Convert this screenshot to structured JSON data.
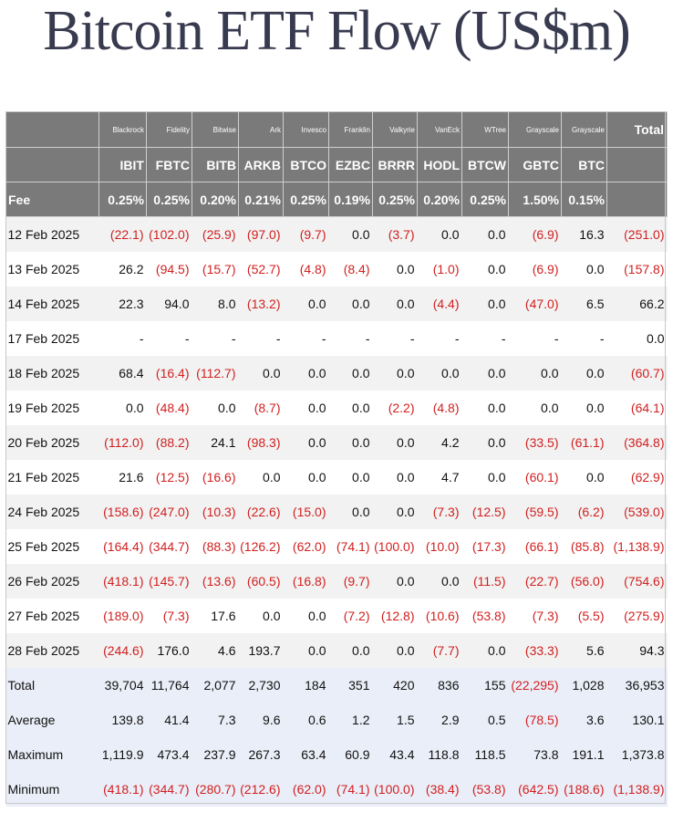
{
  "title": "Bitcoin ETF Flow (US$m)",
  "colors": {
    "header_bg": "#7a7a7a",
    "negative": "#d11f1f",
    "stripe": "#f2f2f2",
    "stats_bg": "#eaeef8",
    "title": "#383a4f"
  },
  "chart_data": {
    "type": "table",
    "title": "Bitcoin ETF Flow (US$m)",
    "issuers": [
      "Blackrock",
      "Fidelity",
      "Bitwise",
      "Ark",
      "Invesco",
      "Franklin",
      "Valkyrie",
      "VanEck",
      "WTree",
      "Grayscale",
      "Grayscale"
    ],
    "total_header": "Total",
    "tickers": [
      "IBIT",
      "FBTC",
      "BITB",
      "ARKB",
      "BTCO",
      "EZBC",
      "BRRR",
      "HODL",
      "BTCW",
      "GBTC",
      "BTC"
    ],
    "fee_label": "Fee",
    "fees": [
      "0.25%",
      "0.25%",
      "0.20%",
      "0.21%",
      "0.25%",
      "0.19%",
      "0.25%",
      "0.20%",
      "0.25%",
      "1.50%",
      "0.15%"
    ],
    "rows": [
      {
        "date": "12 Feb 2025",
        "cells": [
          "(22.1)",
          "(102.0)",
          "(25.9)",
          "(97.0)",
          "(9.7)",
          "0.0",
          "(3.7)",
          "0.0",
          "0.0",
          "(6.9)",
          "16.3",
          "(251.0)"
        ]
      },
      {
        "date": "13 Feb 2025",
        "cells": [
          "26.2",
          "(94.5)",
          "(15.7)",
          "(52.7)",
          "(4.8)",
          "(8.4)",
          "0.0",
          "(1.0)",
          "0.0",
          "(6.9)",
          "0.0",
          "(157.8)"
        ]
      },
      {
        "date": "14 Feb 2025",
        "cells": [
          "22.3",
          "94.0",
          "8.0",
          "(13.2)",
          "0.0",
          "0.0",
          "0.0",
          "(4.4)",
          "0.0",
          "(47.0)",
          "6.5",
          "66.2"
        ]
      },
      {
        "date": "17 Feb 2025",
        "cells": [
          "-",
          "-",
          "-",
          "-",
          "-",
          "-",
          "-",
          "-",
          "-",
          "-",
          "-",
          "0.0"
        ]
      },
      {
        "date": "18 Feb 2025",
        "cells": [
          "68.4",
          "(16.4)",
          "(112.7)",
          "0.0",
          "0.0",
          "0.0",
          "0.0",
          "0.0",
          "0.0",
          "0.0",
          "0.0",
          "(60.7)"
        ]
      },
      {
        "date": "19 Feb 2025",
        "cells": [
          "0.0",
          "(48.4)",
          "0.0",
          "(8.7)",
          "0.0",
          "0.0",
          "(2.2)",
          "(4.8)",
          "0.0",
          "0.0",
          "0.0",
          "(64.1)"
        ]
      },
      {
        "date": "20 Feb 2025",
        "cells": [
          "(112.0)",
          "(88.2)",
          "24.1",
          "(98.3)",
          "0.0",
          "0.0",
          "0.0",
          "4.2",
          "0.0",
          "(33.5)",
          "(61.1)",
          "(364.8)"
        ]
      },
      {
        "date": "21 Feb 2025",
        "cells": [
          "21.6",
          "(12.5)",
          "(16.6)",
          "0.0",
          "0.0",
          "0.0",
          "0.0",
          "4.7",
          "0.0",
          "(60.1)",
          "0.0",
          "(62.9)"
        ]
      },
      {
        "date": "24 Feb 2025",
        "cells": [
          "(158.6)",
          "(247.0)",
          "(10.3)",
          "(22.6)",
          "(15.0)",
          "0.0",
          "0.0",
          "(7.3)",
          "(12.5)",
          "(59.5)",
          "(6.2)",
          "(539.0)"
        ]
      },
      {
        "date": "25 Feb 2025",
        "cells": [
          "(164.4)",
          "(344.7)",
          "(88.3)",
          "(126.2)",
          "(62.0)",
          "(74.1)",
          "(100.0)",
          "(10.0)",
          "(17.3)",
          "(66.1)",
          "(85.8)",
          "(1,138.9)"
        ]
      },
      {
        "date": "26 Feb 2025",
        "cells": [
          "(418.1)",
          "(145.7)",
          "(13.6)",
          "(60.5)",
          "(16.8)",
          "(9.7)",
          "0.0",
          "0.0",
          "(11.5)",
          "(22.7)",
          "(56.0)",
          "(754.6)"
        ]
      },
      {
        "date": "27 Feb 2025",
        "cells": [
          "(189.0)",
          "(7.3)",
          "17.6",
          "0.0",
          "0.0",
          "(7.2)",
          "(12.8)",
          "(10.6)",
          "(53.8)",
          "(7.3)",
          "(5.5)",
          "(275.9)"
        ]
      },
      {
        "date": "28 Feb 2025",
        "cells": [
          "(244.6)",
          "176.0",
          "4.6",
          "193.7",
          "0.0",
          "0.0",
          "0.0",
          "(7.7)",
          "0.0",
          "(33.3)",
          "5.6",
          "94.3"
        ]
      }
    ],
    "stats": [
      {
        "label": "Total",
        "cells": [
          "39,704",
          "11,764",
          "2,077",
          "2,730",
          "184",
          "351",
          "420",
          "836",
          "155",
          "(22,295)",
          "1,028",
          "36,953"
        ]
      },
      {
        "label": "Average",
        "cells": [
          "139.8",
          "41.4",
          "7.3",
          "9.6",
          "0.6",
          "1.2",
          "1.5",
          "2.9",
          "0.5",
          "(78.5)",
          "3.6",
          "130.1"
        ]
      },
      {
        "label": "Maximum",
        "cells": [
          "1,119.9",
          "473.4",
          "237.9",
          "267.3",
          "63.4",
          "60.9",
          "43.4",
          "118.8",
          "118.5",
          "73.8",
          "191.1",
          "1,373.8"
        ]
      },
      {
        "label": "Minimum",
        "cells": [
          "(418.1)",
          "(344.7)",
          "(280.7)",
          "(212.6)",
          "(62.0)",
          "(74.1)",
          "(100.0)",
          "(38.4)",
          "(53.8)",
          "(642.5)",
          "(188.6)",
          "(1,138.9)"
        ]
      }
    ]
  }
}
